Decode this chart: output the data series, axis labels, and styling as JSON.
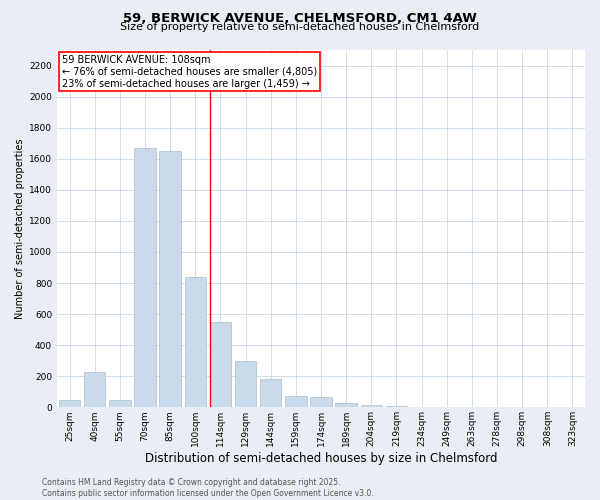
{
  "title_line1": "59, BERWICK AVENUE, CHELMSFORD, CM1 4AW",
  "title_line2": "Size of property relative to semi-detached houses in Chelmsford",
  "xlabel": "Distribution of semi-detached houses by size in Chelmsford",
  "ylabel": "Number of semi-detached properties",
  "categories": [
    "25sqm",
    "40sqm",
    "55sqm",
    "70sqm",
    "85sqm",
    "100sqm",
    "114sqm",
    "129sqm",
    "144sqm",
    "159sqm",
    "174sqm",
    "189sqm",
    "204sqm",
    "219sqm",
    "234sqm",
    "249sqm",
    "263sqm",
    "278sqm",
    "298sqm",
    "308sqm",
    "323sqm"
  ],
  "values": [
    45,
    225,
    45,
    1670,
    1650,
    840,
    550,
    300,
    185,
    70,
    65,
    30,
    15,
    10,
    5,
    3,
    2,
    2,
    2,
    1,
    1
  ],
  "bar_color": "#c9daea",
  "bar_edgecolor": "#aabfce",
  "red_line_index": 5,
  "red_line_xoffset": 0.57,
  "ylim": [
    0,
    2300
  ],
  "yticks": [
    0,
    200,
    400,
    600,
    800,
    1000,
    1200,
    1400,
    1600,
    1800,
    2000,
    2200
  ],
  "annotation_title": "59 BERWICK AVENUE: 108sqm",
  "annotation_line1": "← 76% of semi-detached houses are smaller (4,805)",
  "annotation_line2": "23% of semi-detached houses are larger (1,459) →",
  "footer_line1": "Contains HM Land Registry data © Crown copyright and database right 2025.",
  "footer_line2": "Contains public sector information licensed under the Open Government Licence v3.0.",
  "background_color": "#e8eef4",
  "plot_bg_color": "#ffffff",
  "grid_color": "#c8d8e8",
  "title1_fontsize": 9.5,
  "title2_fontsize": 8.0,
  "xlabel_fontsize": 8.5,
  "ylabel_fontsize": 7.0,
  "tick_fontsize": 6.5,
  "annotation_fontsize": 7.0,
  "footer_fontsize": 5.5
}
